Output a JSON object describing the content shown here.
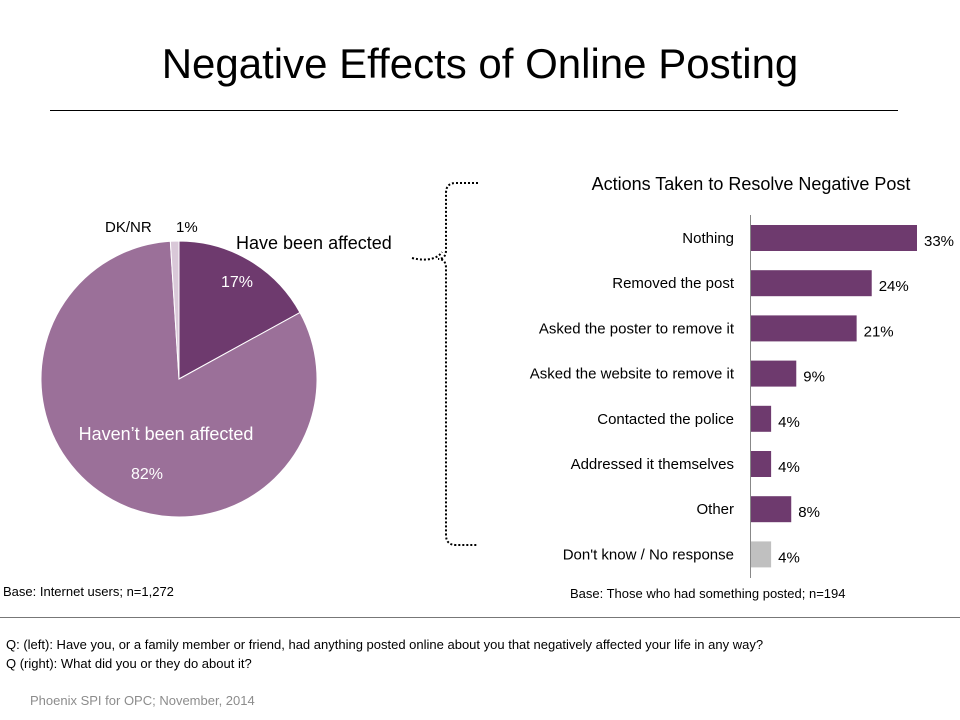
{
  "page": {
    "title": "Negative Effects of Online Posting"
  },
  "footer": {
    "base_left": "Base: Internet users; n=1,272",
    "base_right": "Base: Those who had something posted; n=194",
    "q_left": "Q: (left): Have you, or a family member or friend, had anything posted online about you that negatively affected your life in any way?",
    "q_right": "Q (right): What did you or they do about it?",
    "source": "Phoenix SPI for OPC; November,  2014"
  },
  "colors": {
    "affected": "#6e3a6e",
    "not_affected": "#9b7099",
    "dknr": "#d9c8d8",
    "bar": "#6e3a6e",
    "bar_dk": "#c0c0c0"
  },
  "chart_data": [
    {
      "type": "pie",
      "title": "",
      "slices": [
        {
          "label": "Have been affected",
          "value": 17,
          "value_label": "17%"
        },
        {
          "label": "Haven’t been affected",
          "value": 82,
          "value_label": "82%"
        },
        {
          "label": "DK/NR",
          "value": 1,
          "value_label": "1%"
        }
      ]
    },
    {
      "type": "bar",
      "orientation": "horizontal",
      "title": "Actions Taken to Resolve Negative Post",
      "categories": [
        "Nothing",
        "Removed the post",
        "Asked the poster to remove it",
        "Asked the website to remove it",
        "Contacted the police",
        "Addressed it themselves",
        "Other",
        "Don't know / No response"
      ],
      "values": [
        33,
        24,
        21,
        9,
        4,
        4,
        8,
        4
      ],
      "value_labels": [
        "33%",
        "24%",
        "21%",
        "9%",
        "4%",
        "4%",
        "8%",
        "4%"
      ],
      "xlim": [
        0,
        33
      ]
    }
  ]
}
